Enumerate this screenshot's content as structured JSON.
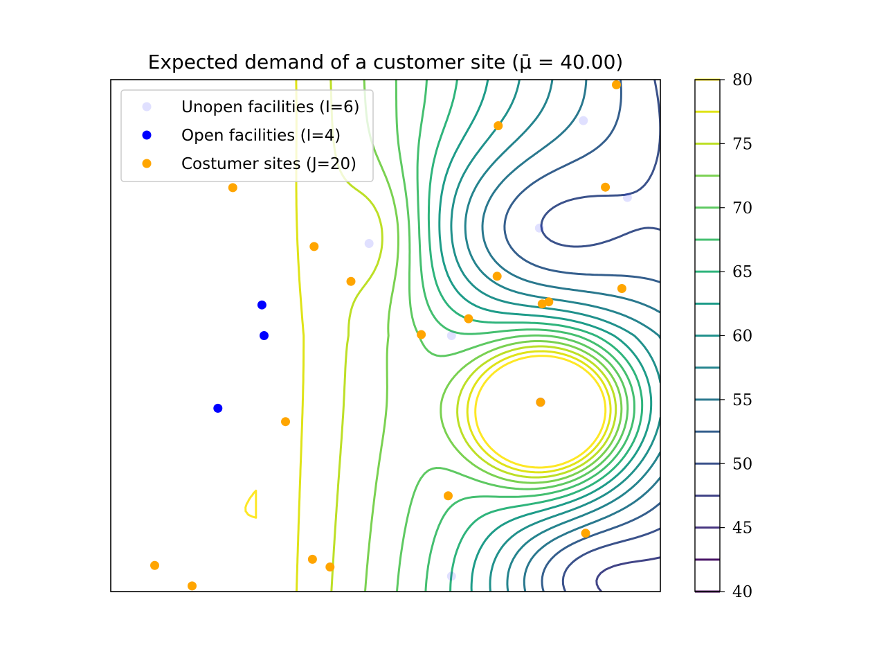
{
  "chart_data": {
    "type": "contour",
    "title": "Expected demand of a customer site (μ̄ = 40.00)",
    "xlabel": "",
    "ylabel": "",
    "xlim": [
      0,
      1
    ],
    "ylim": [
      0,
      1
    ],
    "axis_ticks_shown": false,
    "legend_position": "top-left",
    "contour_levels": [
      40,
      42.5,
      45,
      47.5,
      50,
      52.5,
      55,
      57.5,
      60,
      62.5,
      65,
      67.5,
      70,
      72.5,
      75,
      77.5,
      80
    ],
    "colorbar": {
      "range": [
        40,
        80
      ],
      "ticks": [
        40,
        45,
        50,
        55,
        60,
        65,
        70,
        75,
        80
      ],
      "tick_labels": [
        "40",
        "45",
        "50",
        "55",
        "60",
        "65",
        "70",
        "75",
        "80"
      ],
      "level_colors": [
        "#440154",
        "#471365",
        "#482475",
        "#463480",
        "#414487",
        "#3b528b",
        "#355f8d",
        "#2f6c8e",
        "#2a788e",
        "#25848e",
        "#21918c",
        "#1e9c89",
        "#22a884",
        "#2fb47c",
        "#44bf70",
        "#5ec962",
        "#7ad151",
        "#9bd93c",
        "#bddf26",
        "#dfe318",
        "#fde725"
      ]
    },
    "series": [
      {
        "name": "Unopen facilities (I=6)",
        "color": "#0000ff",
        "alpha": 0.12,
        "points": [
          [
            0.62,
            0.03
          ],
          [
            0.86,
            0.92
          ],
          [
            0.94,
            0.77
          ],
          [
            0.78,
            0.71
          ],
          [
            0.47,
            0.68
          ],
          [
            0.62,
            0.5
          ]
        ]
      },
      {
        "name": "Open facilities (I=4)",
        "color": "#0000ff",
        "alpha": 1,
        "points": [
          [
            0.275,
            0.56
          ],
          [
            0.279,
            0.5
          ],
          [
            0.195,
            0.358
          ],
          [
            0.782,
            0.37
          ]
        ]
      },
      {
        "name": "Costumer sites (J=20)",
        "color": "#ffa500",
        "alpha": 1,
        "points": [
          [
            0.92,
            0.99
          ],
          [
            0.705,
            0.91
          ],
          [
            0.9,
            0.79
          ],
          [
            0.222,
            0.789
          ],
          [
            0.37,
            0.674
          ],
          [
            0.437,
            0.606
          ],
          [
            0.703,
            0.616
          ],
          [
            0.93,
            0.592
          ],
          [
            0.785,
            0.562
          ],
          [
            0.797,
            0.566
          ],
          [
            0.651,
            0.533
          ],
          [
            0.565,
            0.502
          ],
          [
            0.318,
            0.332
          ],
          [
            0.614,
            0.187
          ],
          [
            0.864,
            0.114
          ],
          [
            0.367,
            0.063
          ],
          [
            0.399,
            0.048
          ],
          [
            0.08,
            0.051
          ],
          [
            0.148,
            0.011
          ],
          [
            0.782,
            0.37
          ]
        ]
      }
    ]
  }
}
